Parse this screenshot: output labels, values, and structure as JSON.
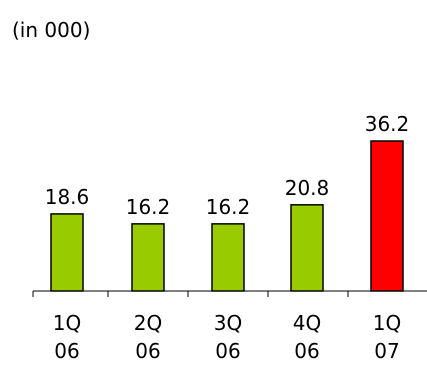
{
  "chart_data": {
    "type": "bar",
    "unit_label": "(in 000)",
    "categories": [
      [
        "1Q",
        "06"
      ],
      [
        "2Q",
        "06"
      ],
      [
        "3Q",
        "06"
      ],
      [
        "4Q",
        "06"
      ],
      [
        "1Q",
        "07"
      ]
    ],
    "values": [
      18.6,
      16.2,
      16.2,
      20.8,
      36.2
    ],
    "value_labels": [
      "18.6",
      "16.2",
      "16.2",
      "20.8",
      "36.2"
    ],
    "bar_colors": [
      "#99cc00",
      "#99cc00",
      "#99cc00",
      "#99cc00",
      "#ff0000"
    ],
    "ylim": [
      0,
      40
    ],
    "grid": false,
    "legend": "none"
  }
}
